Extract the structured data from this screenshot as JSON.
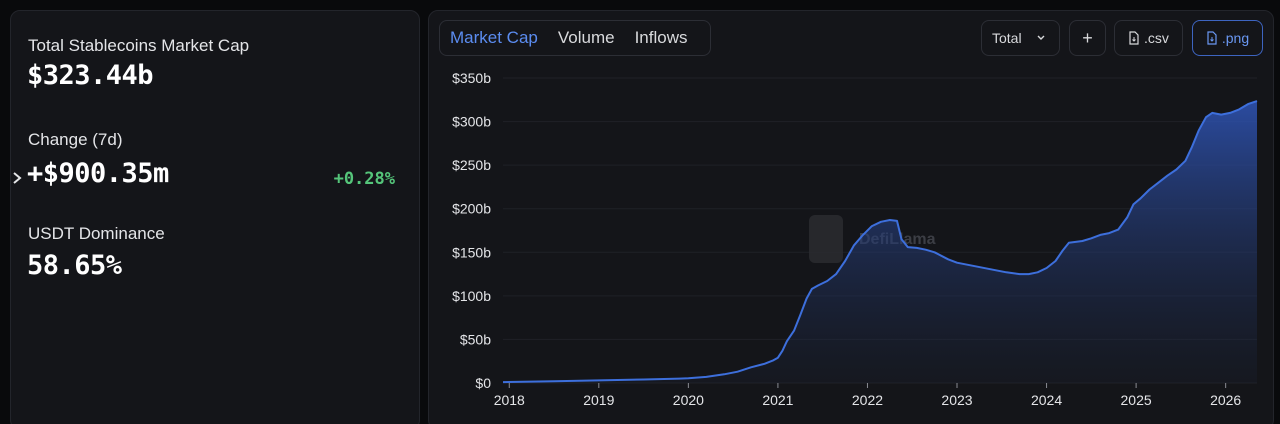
{
  "stats": {
    "market_cap_label": "Total Stablecoins Market Cap",
    "market_cap_value": "$323.44b",
    "change_label": "Change (7d)",
    "change_value": "+$900.35m",
    "change_pct": "+0.28%",
    "dominance_label": "USDT Dominance",
    "dominance_value": "58.65%"
  },
  "tabs": [
    {
      "label": "Market Cap",
      "active": true
    },
    {
      "label": "Volume",
      "active": false
    },
    {
      "label": "Inflows",
      "active": false
    }
  ],
  "toolbar": {
    "select_value": "Total",
    "add_label": "+",
    "csv_label": ".csv",
    "png_label": ".png"
  },
  "watermark": "DefiLlama",
  "colors": {
    "line": "#3d6fdc",
    "positive": "#55c57a",
    "accent": "#5b8cf0"
  },
  "chart_data": {
    "type": "area",
    "title": "",
    "xlabel": "",
    "ylabel": "",
    "grid": true,
    "ylim": [
      0,
      350
    ],
    "y_ticks": [
      "$0",
      "$50b",
      "$100b",
      "$150b",
      "$200b",
      "$250b",
      "$300b",
      "$350b"
    ],
    "x_ticks": [
      "2018",
      "2019",
      "2020",
      "2021",
      "2022",
      "2023",
      "2024",
      "2025",
      "2026"
    ],
    "xlim": [
      2017.93,
      2026.35
    ],
    "series": [
      {
        "values": [
          [
            2017.93,
            1
          ],
          [
            2018.5,
            2
          ],
          [
            2019.0,
            3
          ],
          [
            2019.5,
            4
          ],
          [
            2019.9,
            5
          ],
          [
            2020.0,
            5.5
          ],
          [
            2020.2,
            7
          ],
          [
            2020.4,
            10
          ],
          [
            2020.55,
            13
          ],
          [
            2020.7,
            18
          ],
          [
            2020.85,
            22
          ],
          [
            2020.95,
            26
          ],
          [
            2021.0,
            29
          ],
          [
            2021.05,
            37
          ],
          [
            2021.1,
            48
          ],
          [
            2021.18,
            60
          ],
          [
            2021.25,
            78
          ],
          [
            2021.32,
            97
          ],
          [
            2021.38,
            108
          ],
          [
            2021.45,
            112
          ],
          [
            2021.55,
            117
          ],
          [
            2021.65,
            125
          ],
          [
            2021.75,
            140
          ],
          [
            2021.85,
            158
          ],
          [
            2021.95,
            170
          ],
          [
            2022.05,
            180
          ],
          [
            2022.15,
            185
          ],
          [
            2022.25,
            187
          ],
          [
            2022.33,
            186
          ],
          [
            2022.38,
            165
          ],
          [
            2022.45,
            156
          ],
          [
            2022.55,
            155
          ],
          [
            2022.65,
            153
          ],
          [
            2022.75,
            150
          ],
          [
            2022.9,
            142
          ],
          [
            2023.0,
            138
          ],
          [
            2023.2,
            134
          ],
          [
            2023.4,
            130
          ],
          [
            2023.55,
            127
          ],
          [
            2023.7,
            125
          ],
          [
            2023.8,
            125
          ],
          [
            2023.9,
            127
          ],
          [
            2024.0,
            132
          ],
          [
            2024.1,
            140
          ],
          [
            2024.18,
            152
          ],
          [
            2024.25,
            161
          ],
          [
            2024.4,
            163
          ],
          [
            2024.5,
            166
          ],
          [
            2024.6,
            170
          ],
          [
            2024.7,
            172
          ],
          [
            2024.8,
            176
          ],
          [
            2024.9,
            190
          ],
          [
            2024.97,
            205
          ],
          [
            2025.05,
            212
          ],
          [
            2025.15,
            222
          ],
          [
            2025.25,
            230
          ],
          [
            2025.35,
            238
          ],
          [
            2025.45,
            245
          ],
          [
            2025.55,
            255
          ],
          [
            2025.62,
            270
          ],
          [
            2025.7,
            290
          ],
          [
            2025.78,
            305
          ],
          [
            2025.85,
            310
          ],
          [
            2025.95,
            308
          ],
          [
            2026.05,
            310
          ],
          [
            2026.15,
            314
          ],
          [
            2026.25,
            320
          ],
          [
            2026.35,
            323.44
          ]
        ]
      }
    ]
  }
}
